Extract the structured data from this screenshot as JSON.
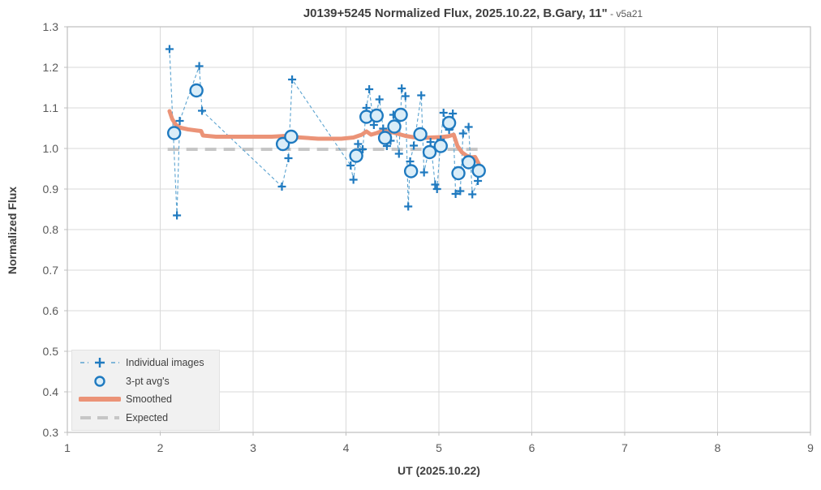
{
  "title": {
    "main": "J0139+5245 Normalized Flux, 2025.10.22, B.Gary, 11\"",
    "suffix": " - v5a21"
  },
  "colors": {
    "blue_marker": "#1f7ac0",
    "blue_dash": "#5ba3d0",
    "circle_fill": "#daedf8",
    "orange_smoothed": "#eb9377",
    "gray_expected": "#c6c6c6",
    "gridline": "#d9d9d9",
    "plot_border": "#bfbfbf",
    "tick_text": "#595959",
    "title_text": "#3f3f3f",
    "legend_bg": "#f1f1f1"
  },
  "chart_data": {
    "type": "scatter",
    "title": "J0139+5245 Normalized Flux, 2025.10.22, B.Gary, 11\" - v5a21",
    "xlabel": "UT (2025.10.22)",
    "ylabel": "Normalized Flux",
    "xlim": [
      1,
      9
    ],
    "ylim": [
      0.3,
      1.3
    ],
    "x_ticks": [
      1,
      2,
      3,
      4,
      5,
      6,
      7,
      8,
      9
    ],
    "y_ticks": [
      0.3,
      0.4,
      0.5,
      0.6,
      0.7,
      0.8,
      0.9,
      1.0,
      1.1,
      1.2,
      1.3
    ],
    "grid": true,
    "legend_position": "lower-left",
    "series": [
      {
        "name": "Individual images",
        "kind": "line-scatter",
        "marker": "plus",
        "line_style": "dashed",
        "x": [
          2.1,
          2.18,
          2.21,
          2.42,
          2.45,
          3.31,
          3.38,
          3.42,
          4.05,
          4.08,
          4.13,
          4.18,
          4.22,
          4.25,
          4.3,
          4.36,
          4.4,
          4.44,
          4.48,
          4.51,
          4.57,
          4.6,
          4.64,
          4.67,
          4.69,
          4.73,
          4.81,
          4.84,
          4.91,
          4.96,
          4.98,
          5.02,
          5.05,
          5.11,
          5.15,
          5.18,
          5.23,
          5.26,
          5.32,
          5.36,
          5.42
        ],
        "y": [
          1.245,
          0.835,
          1.068,
          1.203,
          1.093,
          0.906,
          0.976,
          1.17,
          0.958,
          0.923,
          1.011,
          0.998,
          1.1,
          1.146,
          1.058,
          1.121,
          1.049,
          1.006,
          1.019,
          1.083,
          0.987,
          1.148,
          1.129,
          0.857,
          0.968,
          1.007,
          1.131,
          0.941,
          1.016,
          0.911,
          0.9,
          1.022,
          1.088,
          1.046,
          1.086,
          0.888,
          0.895,
          1.037,
          1.053,
          0.887,
          0.92
        ]
      },
      {
        "name": "3-pt avg's",
        "kind": "scatter",
        "marker": "open-circle",
        "x": [
          2.15,
          2.39,
          3.32,
          3.41,
          4.11,
          4.22,
          4.33,
          4.42,
          4.52,
          4.59,
          4.7,
          4.8,
          4.9,
          5.02,
          5.11,
          5.21,
          5.32,
          5.43
        ],
        "y": [
          1.038,
          1.143,
          1.011,
          1.029,
          0.982,
          1.078,
          1.081,
          1.026,
          1.054,
          1.083,
          0.944,
          1.035,
          0.991,
          1.006,
          1.063,
          0.939,
          0.966,
          0.945
        ]
      },
      {
        "name": "Smoothed",
        "kind": "line",
        "line_style": "solid-thick",
        "x": [
          2.1,
          2.13,
          2.17,
          2.22,
          2.3,
          2.4,
          2.44,
          2.46,
          2.6,
          2.9,
          3.2,
          3.35,
          3.45,
          3.7,
          3.95,
          4.08,
          4.17,
          4.22,
          4.27,
          4.33,
          4.4,
          4.48,
          4.56,
          4.64,
          4.72,
          4.82,
          4.92,
          5.02,
          5.1,
          5.16,
          5.2,
          5.25,
          5.3,
          5.35,
          5.39,
          5.43
        ],
        "y": [
          1.092,
          1.072,
          1.058,
          1.051,
          1.047,
          1.044,
          1.043,
          1.032,
          1.029,
          1.029,
          1.029,
          1.031,
          1.028,
          1.024,
          1.024,
          1.027,
          1.034,
          1.042,
          1.034,
          1.038,
          1.044,
          1.041,
          1.036,
          1.031,
          1.028,
          1.026,
          1.027,
          1.028,
          1.03,
          1.034,
          1.006,
          0.99,
          0.982,
          0.978,
          0.979,
          0.962
        ]
      },
      {
        "name": "Expected",
        "kind": "line",
        "line_style": "dashed-thick",
        "x": [
          2.08,
          5.46
        ],
        "y": [
          0.998,
          0.998
        ]
      }
    ],
    "legend": [
      {
        "label": "Individual images",
        "glyph": "plus-dash"
      },
      {
        "label": "3-pt avg's",
        "glyph": "open-circle"
      },
      {
        "label": "Smoothed",
        "glyph": "thick-line"
      },
      {
        "label": "Expected",
        "glyph": "gray-dash"
      }
    ]
  }
}
